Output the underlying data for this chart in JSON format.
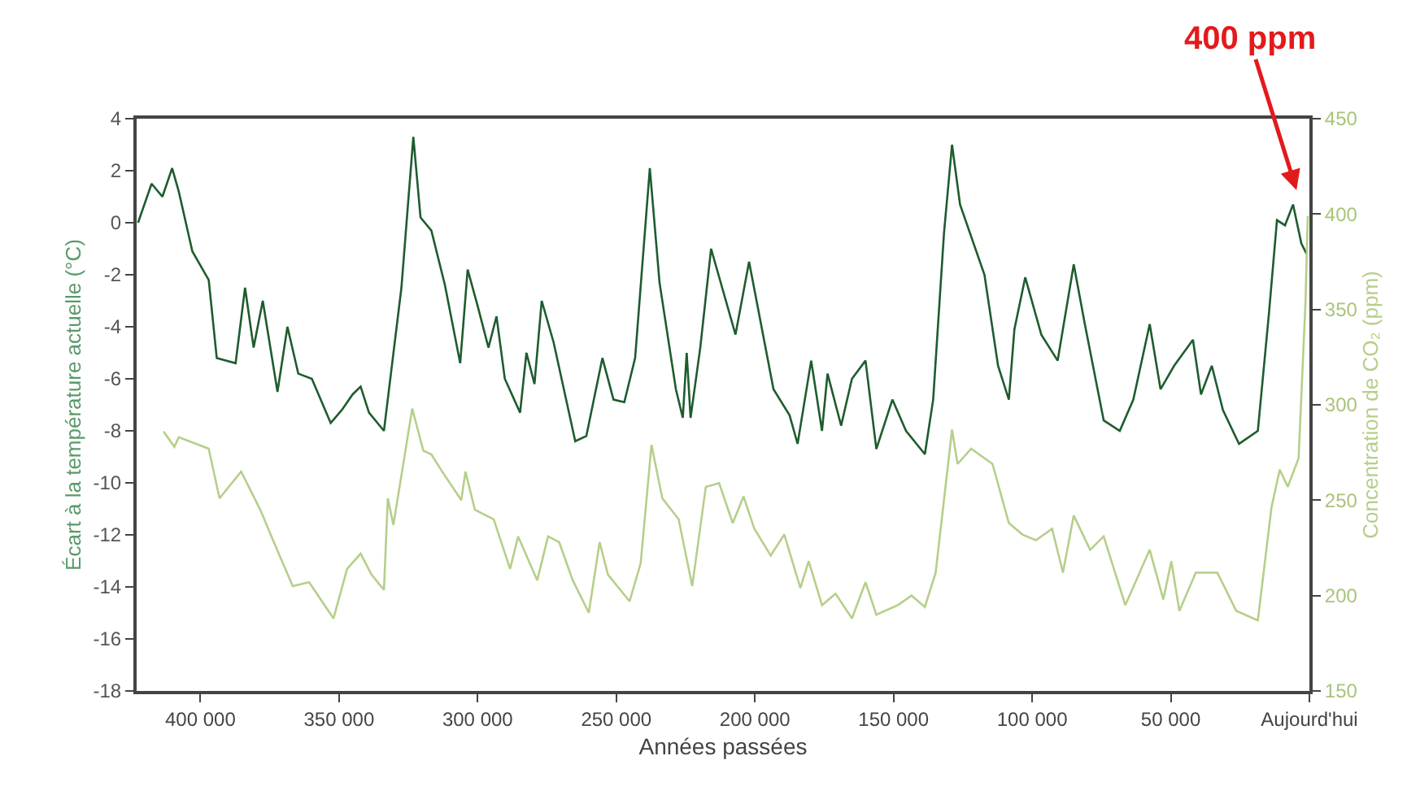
{
  "chart_data": {
    "type": "line",
    "xlabel": "Années passées",
    "ylabel": "Écart à la température actuelle (°C)",
    "y2label": "Concentration de CO₂ (ppm)",
    "xlim": [
      423000,
      0
    ],
    "xticks": [
      {
        "value": 400000,
        "label": "400 000"
      },
      {
        "value": 350000,
        "label": "350 000"
      },
      {
        "value": 300000,
        "label": "300 000"
      },
      {
        "value": 250000,
        "label": "250 000"
      },
      {
        "value": 200000,
        "label": "200 000"
      },
      {
        "value": 150000,
        "label": "150 000"
      },
      {
        "value": 100000,
        "label": "100 000"
      },
      {
        "value": 50000,
        "label": "50 000"
      },
      {
        "value": 0,
        "label": "Aujourd'hui"
      }
    ],
    "ylim": [
      -18,
      4
    ],
    "yticks": [
      -18,
      -16,
      -14,
      -12,
      -10,
      -8,
      -6,
      -4,
      -2,
      0,
      2,
      4
    ],
    "y2lim": [
      150,
      450
    ],
    "y2ticks": [
      150,
      200,
      250,
      300,
      350,
      400,
      450
    ],
    "annotations": [
      "400 ppm"
    ],
    "series": [
      {
        "color": "#1e5c2e",
        "x": [
          422500,
          417600,
          413700,
          410200,
          407800,
          402900,
          397000,
          394100,
          387300,
          383900,
          380800,
          377500,
          372200,
          368600,
          364700,
          359800,
          353000,
          349000,
          345100,
          342200,
          339200,
          333800,
          327500,
          323200,
          320600,
          316700,
          311800,
          306300,
          303600,
          300000,
          296100,
          293200,
          290200,
          284700,
          282400,
          279500,
          276900,
          272600,
          264800,
          260800,
          255000,
          251000,
          247100,
          243200,
          237900,
          234400,
          228500,
          226000,
          224600,
          223200,
          219700,
          215800,
          207000,
          202100,
          193300,
          187500,
          184600,
          179700,
          175800,
          173800,
          168900,
          165000,
          160100,
          156200,
          150400,
          145500,
          138700,
          135700,
          131800,
          128900,
          126000,
          117200,
          112300,
          108400,
          106400,
          102500,
          96700,
          90800,
          85000,
          81000,
          74200,
          68400,
          63500,
          57600,
          53700,
          48800,
          42000,
          39100,
          35200,
          31200,
          25400,
          18600,
          14600,
          11700,
          8800,
          5900,
          2900,
          1000
        ],
        "values": [
          0,
          1.5,
          1.0,
          2.1,
          1.2,
          -1.1,
          -2.2,
          -5.2,
          -5.4,
          -2.5,
          -4.8,
          -3.0,
          -6.5,
          -4.0,
          -5.8,
          -6.0,
          -7.7,
          -7.2,
          -6.6,
          -6.3,
          -7.3,
          -8.0,
          -2.5,
          3.3,
          0.2,
          -0.3,
          -2.4,
          -5.4,
          -1.8,
          -3.2,
          -4.8,
          -3.6,
          -6.0,
          -7.3,
          -5.0,
          -6.2,
          -3.0,
          -4.6,
          -8.4,
          -8.2,
          -5.2,
          -6.8,
          -6.9,
          -5.2,
          2.1,
          -2.3,
          -6.4,
          -7.5,
          -5.0,
          -7.5,
          -4.8,
          -1.0,
          -4.3,
          -1.5,
          -6.4,
          -7.4,
          -8.5,
          -5.3,
          -8.0,
          -5.8,
          -7.8,
          -6.0,
          -5.3,
          -8.7,
          -6.8,
          -8.0,
          -8.9,
          -6.8,
          -0.4,
          3.0,
          0.7,
          -2.0,
          -5.5,
          -6.8,
          -4.1,
          -2.1,
          -4.3,
          -5.3,
          -1.6,
          -3.9,
          -7.6,
          -8.0,
          -6.8,
          -3.9,
          -6.4,
          -5.5,
          -4.5,
          -6.6,
          -5.5,
          -7.2,
          -8.5,
          -8.0,
          -3.5,
          0.1,
          -0.1,
          0.7,
          -0.8,
          -1.2
        ]
      },
      {
        "color": "#b5cf8a",
        "axis": "y2",
        "x": [
          413300,
          409400,
          407800,
          397000,
          393100,
          385300,
          378400,
          373500,
          366700,
          360800,
          352000,
          347100,
          342200,
          338300,
          333800,
          332400,
          330400,
          323600,
          319600,
          316700,
          312800,
          305900,
          304400,
          301000,
          294200,
          288300,
          285400,
          278500,
          274600,
          270600,
          265700,
          259900,
          256000,
          253000,
          245200,
          241200,
          237300,
          233400,
          227500,
          222600,
          217700,
          212900,
          208000,
          204100,
          200200,
          194300,
          189400,
          183600,
          180600,
          175800,
          170900,
          165000,
          160100,
          156200,
          148400,
          143500,
          138700,
          134800,
          128900,
          126900,
          122000,
          114300,
          108400,
          103500,
          98600,
          92800,
          88900,
          85000,
          79100,
          74200,
          66400,
          57600,
          52700,
          49800,
          46900,
          41000,
          33200,
          26400,
          18600,
          13700,
          10700,
          7800,
          3900,
          1400,
          600
        ],
        "values": [
          286,
          278,
          283,
          277,
          251,
          265,
          245,
          228,
          205,
          207,
          188,
          214,
          222,
          211,
          203,
          251,
          237,
          298,
          276,
          274,
          265,
          250,
          265,
          245,
          240,
          214,
          231,
          208,
          231,
          228,
          208,
          191,
          228,
          211,
          197,
          217,
          279,
          251,
          240,
          205,
          257,
          259,
          238,
          252,
          235,
          221,
          232,
          204,
          218,
          195,
          201,
          188,
          207,
          190,
          195,
          200,
          194,
          212,
          287,
          269,
          277,
          269,
          238,
          232,
          229,
          235,
          212,
          242,
          224,
          231,
          195,
          224,
          198,
          218,
          192,
          212,
          212,
          192,
          187,
          246,
          266,
          257,
          272,
          354,
          399
        ]
      }
    ]
  }
}
